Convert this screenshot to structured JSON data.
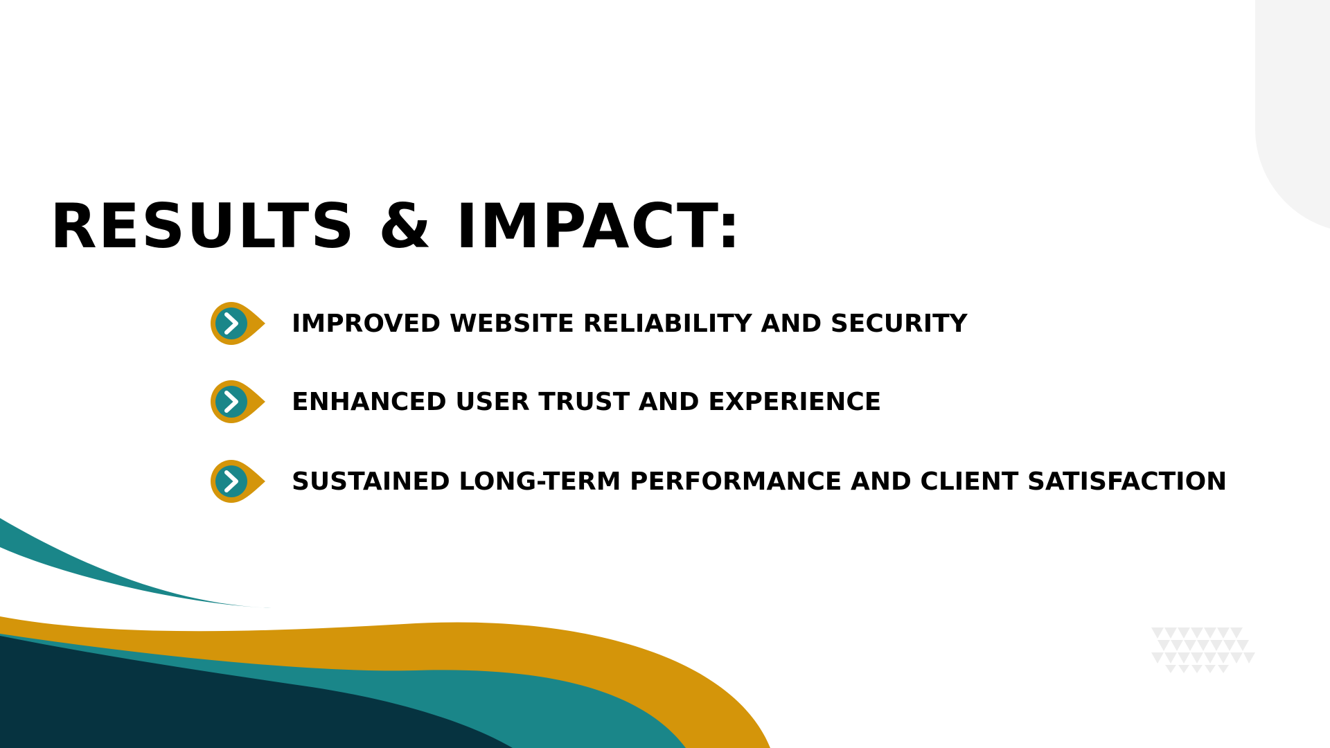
{
  "slide": {
    "title": "RESULTS & IMPACT:",
    "bullets": [
      {
        "text": "IMPROVED WEBSITE RELIABILITY AND SECURITY",
        "icon": "chevron-right-icon"
      },
      {
        "text": "ENHANCED USER TRUST AND EXPERIENCE",
        "icon": "chevron-right-icon"
      },
      {
        "text": "SUSTAINED LONG-TERM PERFORMANCE AND CLIENT SATISFACTION",
        "icon": "chevron-right-icon"
      }
    ]
  },
  "colors": {
    "teal": "#1a8689",
    "gold": "#d4950a",
    "navy": "#063340",
    "text": "#000000"
  }
}
